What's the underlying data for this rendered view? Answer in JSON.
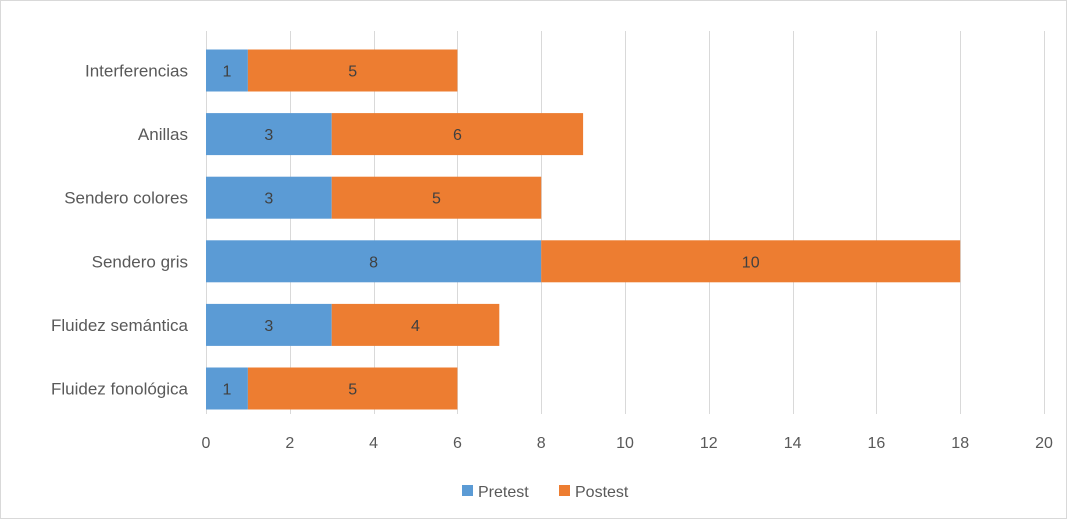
{
  "chart_data": {
    "type": "bar",
    "orientation": "horizontal",
    "stacked": true,
    "categories": [
      "Interferencias",
      "Anillas",
      "Sendero colores",
      "Sendero gris",
      "Fluidez semántica",
      "Fluidez fonológica"
    ],
    "series": [
      {
        "name": "Pretest",
        "color": "#5b9bd5",
        "values": [
          1,
          3,
          3,
          8,
          3,
          1
        ]
      },
      {
        "name": "Postest",
        "color": "#ed7d31",
        "values": [
          5,
          6,
          5,
          10,
          4,
          5
        ]
      }
    ],
    "xlim": [
      0,
      20
    ],
    "xticks": [
      0,
      2,
      4,
      6,
      8,
      10,
      12,
      14,
      16,
      18,
      20
    ],
    "grid": "vertical",
    "legend_position": "bottom",
    "data_labels": true
  }
}
